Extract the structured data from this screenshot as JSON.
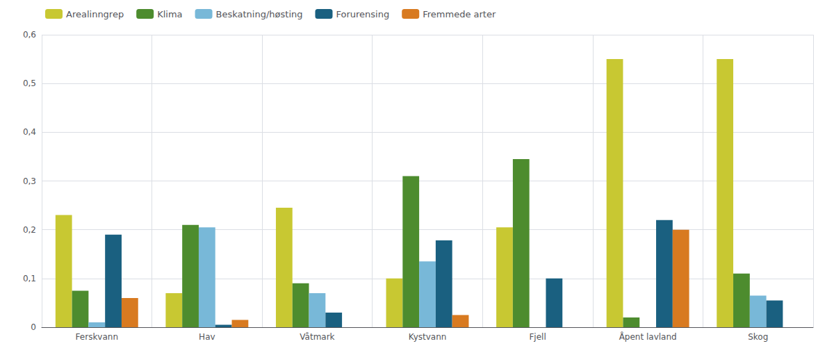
{
  "chart_data": {
    "type": "bar",
    "categories": [
      "Ferskvann",
      "Hav",
      "Våtmark",
      "Kystvann",
      "Fjell",
      "Åpent lavland",
      "Skog"
    ],
    "series": [
      {
        "name": "Arealinngrep",
        "color": "#c8c832",
        "values": [
          0.23,
          0.07,
          0.245,
          0.1,
          0.205,
          0.55,
          0.55
        ]
      },
      {
        "name": "Klima",
        "color": "#4d8c2e",
        "values": [
          0.075,
          0.21,
          0.09,
          0.31,
          0.345,
          0.02,
          0.11
        ]
      },
      {
        "name": "Beskatning/høsting",
        "color": "#78b8d8",
        "values": [
          0.01,
          0.205,
          0.07,
          0.135,
          0.0,
          0.0,
          0.065
        ]
      },
      {
        "name": "Forurensing",
        "color": "#1a6080",
        "values": [
          0.19,
          0.005,
          0.03,
          0.178,
          0.1,
          0.22,
          0.055
        ]
      },
      {
        "name": "Fremmede arter",
        "color": "#d87a20",
        "values": [
          0.06,
          0.015,
          0.0,
          0.025,
          0.0,
          0.2,
          0.0
        ]
      }
    ],
    "ylim": [
      0,
      0.6
    ],
    "yticks": [
      0,
      {
        "value": 0.1,
        "label": "0,1"
      },
      {
        "value": 0.2,
        "label": "0,2"
      },
      {
        "value": 0.3,
        "label": "0,3"
      },
      {
        "value": 0.4,
        "label": "0,4"
      },
      {
        "value": 0.5,
        "label": "0,5"
      },
      {
        "value": 0.6,
        "label": "0,6"
      }
    ],
    "grid": true,
    "legend": "upper left"
  }
}
